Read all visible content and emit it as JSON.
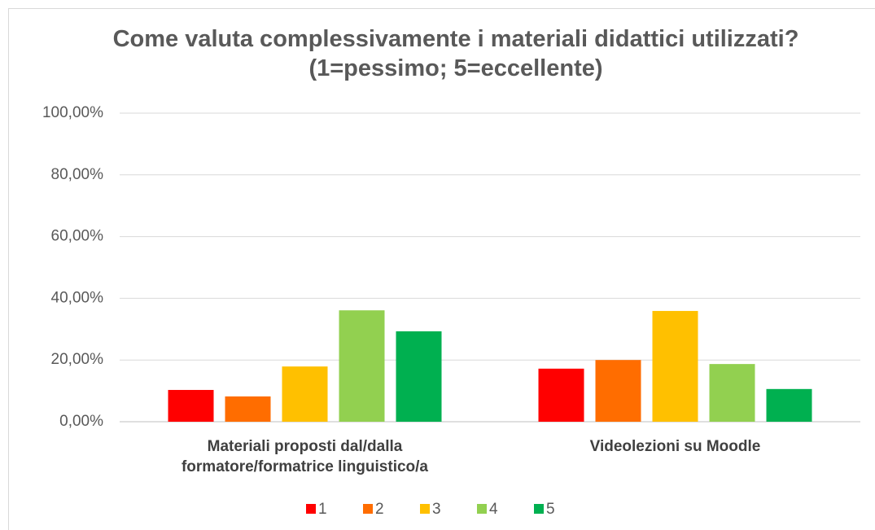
{
  "chart_data": {
    "type": "bar",
    "title": "Come valuta complessivamente i materiali didattici utilizzati? (1=pessimo; 5=eccellente)",
    "categories": [
      "Materiali proposti dal/dalla formatore/formatrice linguistico/a",
      "Videolezioni su Moodle"
    ],
    "series": [
      {
        "name": "1",
        "color": "#ff0000",
        "values": [
          10.3,
          17.2
        ]
      },
      {
        "name": "2",
        "color": "#ff6d00",
        "values": [
          8.2,
          20
        ]
      },
      {
        "name": "3",
        "color": "#ffc000",
        "values": [
          17.9,
          35.9
        ]
      },
      {
        "name": "4",
        "color": "#92d050",
        "values": [
          36.1,
          18.7
        ]
      },
      {
        "name": "5",
        "color": "#00b050",
        "values": [
          29.3,
          10.6
        ]
      }
    ],
    "ylim": [
      0,
      100
    ],
    "yticks": [
      {
        "value": 0,
        "label": "0,00%"
      },
      {
        "value": 20,
        "label": "20,00%"
      },
      {
        "value": 40,
        "label": "40,00%"
      },
      {
        "value": 60,
        "label": "60,00%"
      },
      {
        "value": 80,
        "label": "80,00%"
      },
      {
        "value": 100,
        "label": "100,00%"
      }
    ],
    "grid": true,
    "legend": "bottom"
  }
}
